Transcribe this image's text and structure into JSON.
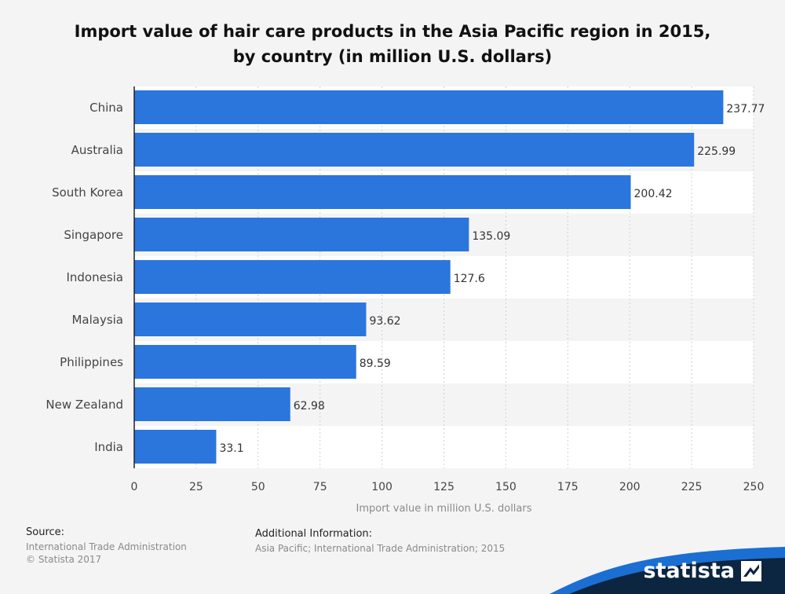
{
  "header": {
    "title_line1": "Import value of hair care products in the Asia Pacific region in 2015,",
    "title_line2": "by country (in million U.S. dollars)"
  },
  "chart_data": {
    "type": "bar",
    "orientation": "horizontal",
    "title": "Import value of hair care products in the Asia Pacific region in 2015, by country (in million U.S. dollars)",
    "categories": [
      "China",
      "Australia",
      "South Korea",
      "Singapore",
      "Indonesia",
      "Malaysia",
      "Philippines",
      "New Zealand",
      "India"
    ],
    "values": [
      237.77,
      225.99,
      200.42,
      135.09,
      127.6,
      93.62,
      89.59,
      62.98,
      33.1
    ],
    "data_labels": [
      "237.77",
      "225.99",
      "200.42",
      "135.09",
      "127.6",
      "93.62",
      "89.59",
      "62.98",
      "33.1"
    ],
    "xlabel": "Import value in million U.S. dollars",
    "ylabel": "",
    "xlim": [
      0,
      250
    ],
    "xticks": [
      0,
      25,
      50,
      75,
      100,
      125,
      150,
      175,
      200,
      225,
      250
    ],
    "grid": true,
    "bar_color": "#2a76dd",
    "band_colors": [
      "#ffffff",
      "#f4f4f4"
    ]
  },
  "footer": {
    "source_heading": "Source:",
    "source_line1": "International Trade Administration",
    "source_line2": "© Statista 2017",
    "additional_heading": "Additional Information:",
    "additional_text": "Asia Pacific; International Trade Administration; 2015"
  },
  "brand": {
    "name": "statista",
    "wave_color": "#1b6fd3",
    "logo_bg": "#0c2540"
  }
}
